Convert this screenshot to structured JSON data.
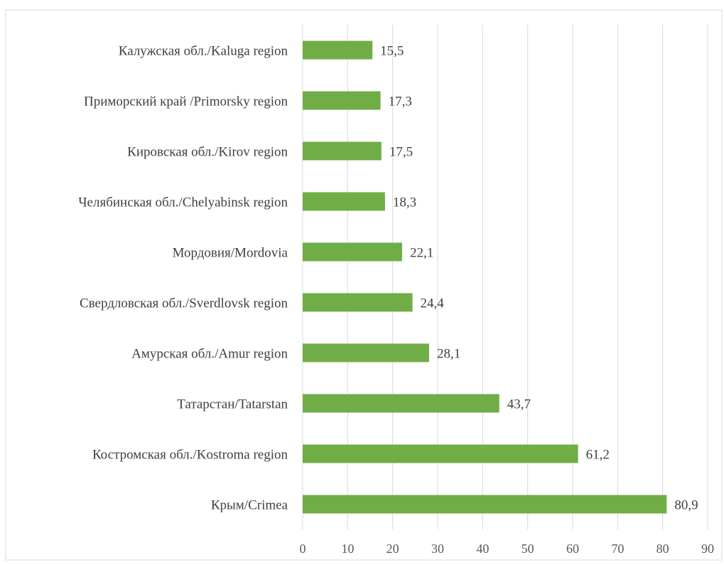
{
  "chart_data": {
    "type": "bar",
    "orientation": "horizontal",
    "categories": [
      "Калужская обл./Kaluga region",
      "Приморский край /Primorsky region",
      "Кировская обл./Kirov region",
      "Челябинская обл./Chelyabinsk region",
      "Мордовия/Mordovia",
      "Свердловская обл./Sverdlovsk region",
      "Амурская обл./Amur region",
      "Татарстан/Tatarstan",
      "Костромская обл./Kostroma region",
      "Крым/Crimea"
    ],
    "values": [
      15.5,
      17.3,
      17.5,
      18.3,
      22.1,
      24.4,
      28.1,
      43.7,
      61.2,
      80.9
    ],
    "value_labels": [
      "15,5",
      "17,3",
      "17,5",
      "18,3",
      "22,1",
      "24,4",
      "28,1",
      "43,7",
      "61,2",
      "80,9"
    ],
    "xlim": [
      0,
      90
    ],
    "xticks": [
      0,
      10,
      20,
      30,
      40,
      50,
      60,
      70,
      80,
      90
    ],
    "grid": "vertical",
    "legend": "none",
    "bar_color": "#70ad47",
    "grid_color": "#d9d9d9",
    "title": "",
    "xlabel": "",
    "ylabel": ""
  }
}
